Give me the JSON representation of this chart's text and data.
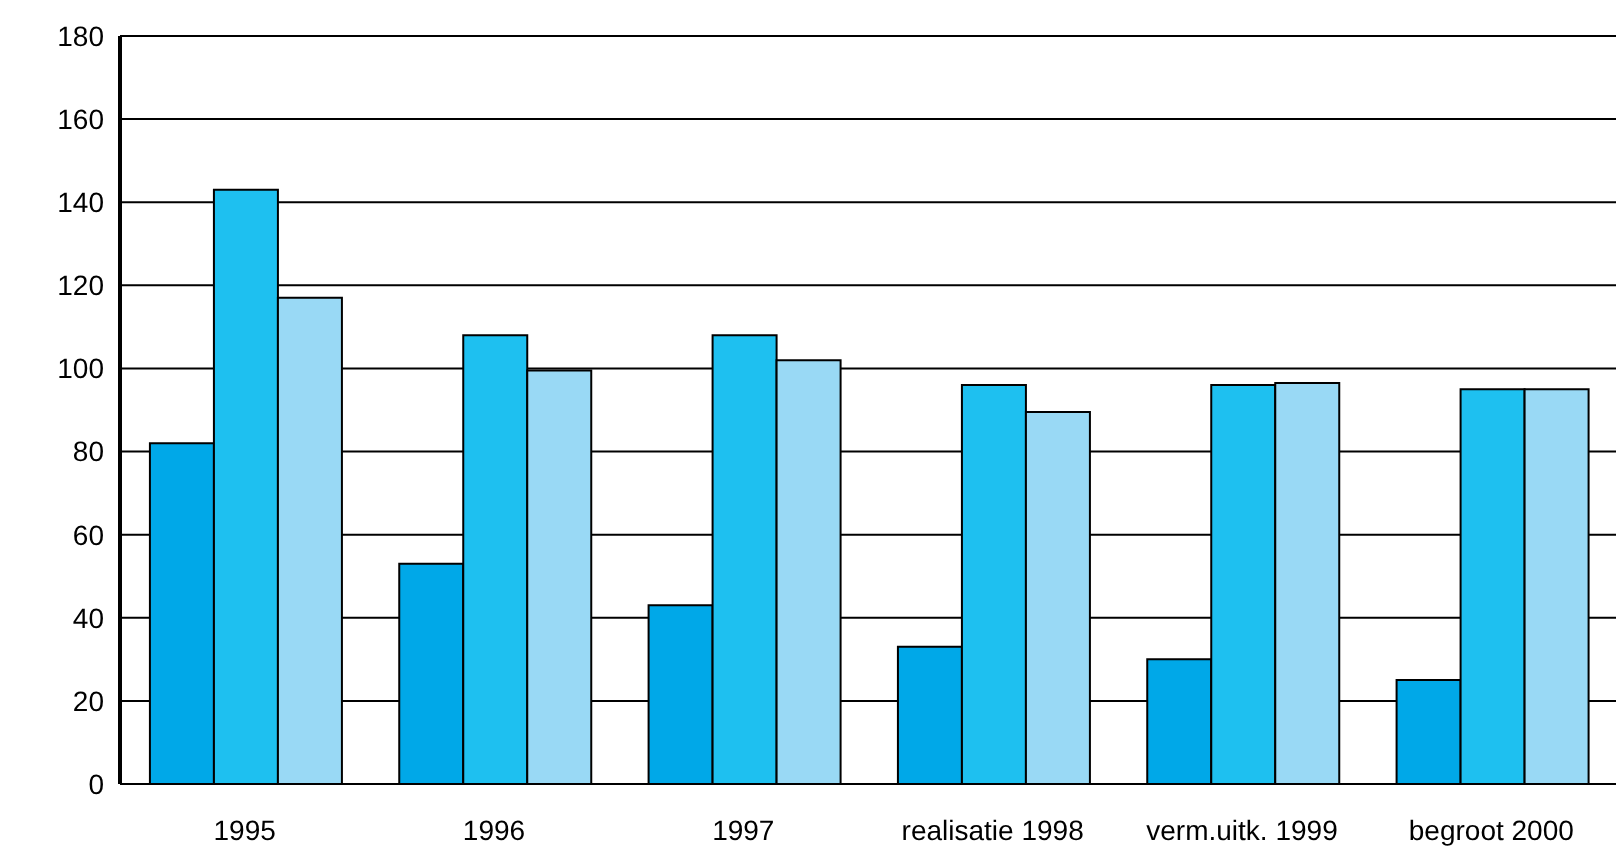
{
  "chart_data": {
    "type": "bar",
    "categories": [
      "1995",
      "1996",
      "1997",
      "realisatie 1998",
      "verm.uitk. 1999",
      "begroot 2000"
    ],
    "series": [
      {
        "color": "#00a8e8",
        "values": [
          82,
          53,
          43,
          33,
          30,
          25
        ]
      },
      {
        "color": "#1ec0f0",
        "values": [
          143,
          108,
          108,
          96,
          96,
          95
        ]
      },
      {
        "color": "#99d9f5",
        "values": [
          117,
          99.5,
          102,
          89.5,
          96.5,
          95
        ]
      }
    ],
    "ylim": [
      0,
      180
    ],
    "yticks": [
      0,
      20,
      40,
      60,
      80,
      100,
      120,
      140,
      160,
      180
    ],
    "grid": "y",
    "legend": false
  }
}
